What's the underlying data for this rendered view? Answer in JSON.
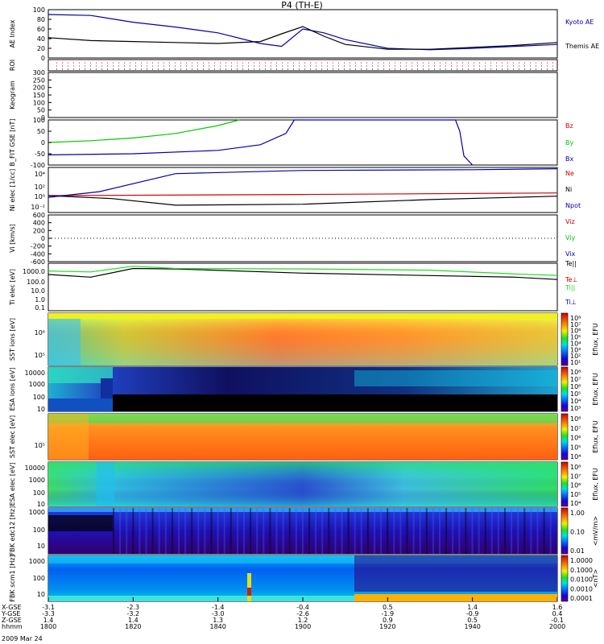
{
  "title": "P4 (TH-E)",
  "date_label": "2009 Mar 24",
  "time_axis": {
    "rows": [
      {
        "label": "X-GSE",
        "values": [
          "-3.1",
          "-2.3",
          "-1.4",
          "-0.4",
          "0.5",
          "1.4",
          "1.6"
        ]
      },
      {
        "label": "Y-GSE",
        "values": [
          "-3.3",
          "-3.2",
          "-3.0",
          "-2.6",
          "-1.9",
          "-0.9",
          "0.4"
        ]
      },
      {
        "label": "Z-GSE",
        "values": [
          "1.4",
          "1.4",
          "1.3",
          "1.2",
          "0.9",
          "0.5",
          "-0.1"
        ]
      },
      {
        "label": "hhmm",
        "values": [
          "1800",
          "1820",
          "1840",
          "1900",
          "1920",
          "1940",
          "2000"
        ]
      }
    ]
  },
  "chart_data": [
    {
      "type": "line",
      "panel": "ae",
      "ylabel": "AE Index",
      "ylim": [
        0,
        100
      ],
      "yticks": [
        "0",
        "20",
        "40",
        "60",
        "80",
        "100"
      ],
      "x": [
        1800,
        1810,
        1820,
        1830,
        1840,
        1850,
        1855,
        1900,
        1905,
        1910,
        1920,
        1930,
        1940,
        1950,
        2000
      ],
      "series": [
        {
          "name": "Kyoto AE",
          "color": "#0000aa",
          "values": [
            90,
            88,
            74,
            64,
            52,
            30,
            24,
            60,
            52,
            38,
            20,
            17,
            20,
            24,
            28
          ]
        },
        {
          "name": "Themis AE",
          "color": "#000000",
          "values": [
            42,
            36,
            34,
            32,
            30,
            34,
            50,
            65,
            45,
            28,
            18,
            18,
            22,
            26,
            32
          ]
        }
      ]
    },
    {
      "type": "line",
      "panel": "roi",
      "ylabel": "ROI",
      "yticks": []
    },
    {
      "type": "line",
      "panel": "keogram",
      "ylabel": "Keogram",
      "ylim": [
        0,
        300
      ],
      "yticks": [
        "0",
        "50",
        "100",
        "150",
        "200",
        "250",
        "300"
      ]
    },
    {
      "type": "line",
      "panel": "bfield",
      "ylabel": "B_FIT GSE [nT]",
      "ylim": [
        -100,
        100
      ],
      "yticks": [
        "-100",
        "-50",
        "0",
        "50",
        "100"
      ],
      "series": [
        {
          "name": "Bz",
          "color": "#cc0000",
          "x": [],
          "values": []
        },
        {
          "name": "By",
          "color": "#00cc00",
          "x": [
            1800,
            1810,
            1820,
            1830,
            1840,
            1845
          ],
          "values": [
            0,
            8,
            20,
            40,
            75,
            100
          ]
        },
        {
          "name": "Bx",
          "color": "#0000aa",
          "x": [
            1800,
            1820,
            1840,
            1850,
            1856,
            1858,
            1936,
            1937,
            1938,
            1940
          ],
          "values": [
            -55,
            -50,
            -35,
            -10,
            40,
            100,
            100,
            50,
            -60,
            -100
          ]
        }
      ]
    },
    {
      "type": "line",
      "panel": "density",
      "ylabel": "Ni",
      "sublabel": "elec",
      "units": "[1/cc]",
      "yticks": [
        "10⁴",
        "10²",
        "10⁰",
        "10⁻²"
      ],
      "series": [
        {
          "name": "Ne",
          "color": "#cc0000",
          "x": [
            1800,
            1900,
            2000
          ],
          "values": [
            1,
            1.6,
            3
          ]
        },
        {
          "name": "Ni",
          "color": "#000000",
          "x": [
            1800,
            1815,
            1830,
            1900,
            1930,
            1950,
            2000
          ],
          "values": [
            1,
            0.3,
            0.02,
            0.03,
            0.2,
            0.5,
            0.8
          ]
        },
        {
          "name": "Npot",
          "color": "#0000aa",
          "x": [
            1800,
            1812,
            1830,
            1900,
            1940,
            2000
          ],
          "values": [
            0.5,
            5,
            8000,
            30000,
            40000,
            60000
          ]
        }
      ]
    },
    {
      "type": "line",
      "panel": "velocity",
      "ylabel": "Vi",
      "units": "[km/s]",
      "ylim": [
        -800,
        800
      ],
      "yticks": [
        "-600",
        "-400",
        "-200",
        "0",
        "200",
        "400",
        "600"
      ],
      "series": [
        {
          "name": "Viz",
          "color": "#cc0000"
        },
        {
          "name": "Viy",
          "color": "#00cc00"
        },
        {
          "name": "Vix",
          "color": "#0000aa"
        }
      ]
    },
    {
      "type": "line",
      "panel": "temperature",
      "ylabel": "Ti",
      "sublabel": "elec",
      "units": "[eV]",
      "yticks": [
        "1000.0",
        "100.0",
        "10.0",
        "1.0",
        "0.1"
      ],
      "legend": [
        "Te||",
        "Te⊥",
        "Ti||",
        "Ti⊥"
      ],
      "series": [
        {
          "name": "Te||",
          "color": "#000000",
          "x": [
            1800,
            1810,
            1820,
            1830,
            1900,
            1950,
            2000
          ],
          "values": [
            220,
            120,
            900,
            800,
            300,
            120,
            70
          ]
        },
        {
          "name": "Ti||",
          "color": "#22dd22",
          "x": [
            1800,
            1810,
            1820,
            1830,
            1900,
            1930,
            1950,
            2000
          ],
          "values": [
            500,
            400,
            1500,
            900,
            800,
            600,
            250,
            180
          ]
        }
      ]
    },
    {
      "type": "heatmap",
      "panel": "sst_ion",
      "ylabel": "SST ions [eV]",
      "yticks": [
        "10⁶",
        "10⁵"
      ],
      "cbar": "Eflux, EFU",
      "cbar_ticks": [
        "10⁸",
        "10⁷",
        "10⁶",
        "10⁵",
        "10⁴",
        "10³",
        "10²",
        "10¹"
      ]
    },
    {
      "type": "heatmap",
      "panel": "esa_ion",
      "ylabel": "ESA ions [eV]",
      "yticks": [
        "10000",
        "1000",
        "100",
        "10"
      ],
      "cbar": "Eflux, EFU",
      "cbar_ticks": [
        "10⁸",
        "10⁷",
        "10⁶",
        "10⁵",
        "10⁴",
        "10³"
      ]
    },
    {
      "type": "heatmap",
      "panel": "sst_elec",
      "ylabel": "SST elec [eV]",
      "yticks": [
        "10⁵"
      ],
      "cbar": "Eflux, EFU",
      "cbar_ticks": [
        "10⁸",
        "10⁷",
        "10⁶",
        "10⁵",
        "10⁴"
      ]
    },
    {
      "type": "heatmap",
      "panel": "esa_elec",
      "ylabel": "ESA elec [eV]",
      "yticks": [
        "10000",
        "1000",
        "100",
        "10"
      ],
      "cbar": "Eflux, EFU",
      "cbar_ticks": [
        "10⁸",
        "10⁷",
        "10⁶",
        "10⁵",
        "10⁴"
      ]
    },
    {
      "type": "heatmap",
      "panel": "fbk_e",
      "ylabel": "FBK edc12 [Hz]",
      "yticks": [
        "1000",
        "100",
        "10"
      ],
      "cbar": "<mV/m>",
      "cbar_ticks": [
        "1.00",
        "0.10",
        "0.01"
      ]
    },
    {
      "type": "heatmap",
      "panel": "fbk_b",
      "ylabel": "FBK scm1 [Hz]",
      "yticks": [
        "1000",
        "100",
        "10"
      ],
      "cbar": "<nT>",
      "cbar_ticks": [
        "1.0000",
        "0.1000",
        "0.0100",
        "0.0010",
        "0.0001"
      ]
    }
  ]
}
